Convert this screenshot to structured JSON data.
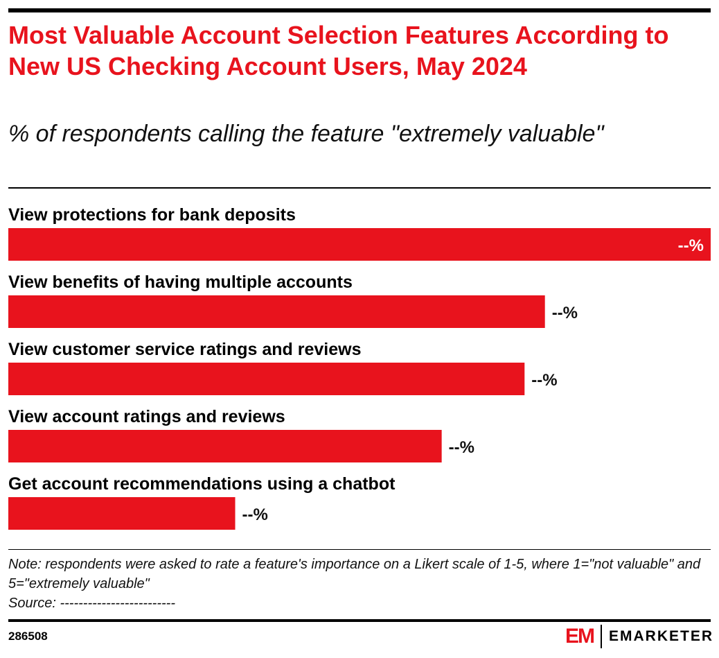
{
  "chart_data": {
    "type": "bar",
    "orientation": "horizontal",
    "title": "Most Valuable Account Selection Features According to New US Checking Account Users, May 2024",
    "subtitle": "% of respondents calling the feature \"extremely valuable\"",
    "categories": [
      "View protections for bank deposits",
      "View benefits of having multiple accounts",
      "View customer service ratings and reviews",
      "View account ratings and reviews",
      "Get account recommendations using a chatbot"
    ],
    "relative_values": [
      100,
      76.4,
      73.5,
      61.7,
      32.3
    ],
    "value_labels": [
      "--%",
      "--%",
      "--%",
      "--%",
      "--%"
    ],
    "bar_color": "#e8131d"
  },
  "note": "Note: respondents were asked to rate a feature's importance on a Likert scale of 1-5, where 1=\"not valuable\" and 5=\"extremely valuable\"",
  "source": "Source: -------------------------",
  "chart_id": "286508",
  "logo": {
    "mark": "EM",
    "text": "EMARKETER"
  }
}
